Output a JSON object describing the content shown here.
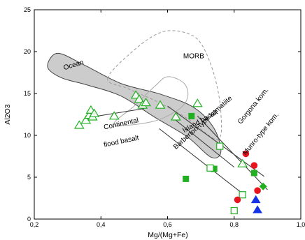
{
  "chart_data": {
    "type": "scatter",
    "xlabel": "Mg/(Mg+Fe)",
    "ylabel": "Al2O3",
    "xlim": [
      0.2,
      1.0
    ],
    "ylim": [
      0,
      25
    ],
    "xticks": [
      "0,2",
      "0,4",
      "0,6",
      "0,8",
      "1,0"
    ],
    "xtick_values": [
      0.2,
      0.4,
      0.6,
      0.8,
      1.0
    ],
    "yticks": [
      "0",
      "5",
      "10",
      "15",
      "20",
      "25"
    ],
    "ytick_values": [
      0,
      5,
      10,
      15,
      20,
      25
    ],
    "grid": false,
    "colors": {
      "green": "#22b022",
      "red": "#e8141e",
      "blue": "#1432e6",
      "ocean_fill": "#cccccc"
    },
    "series": [
      {
        "marker": "open-triangle",
        "color": "#22b022",
        "points": [
          [
            0.335,
            11.2
          ],
          [
            0.355,
            11.8
          ],
          [
            0.365,
            12.4
          ],
          [
            0.37,
            13.0
          ],
          [
            0.375,
            12.2
          ],
          [
            0.38,
            12.6
          ],
          [
            0.44,
            12.3
          ],
          [
            0.505,
            14.8
          ],
          [
            0.515,
            14.3
          ],
          [
            0.525,
            13.6
          ],
          [
            0.535,
            13.9
          ],
          [
            0.578,
            13.6
          ],
          [
            0.625,
            12.2
          ],
          [
            0.69,
            13.8
          ],
          [
            0.825,
            6.6
          ]
        ]
      },
      {
        "marker": "filled-square",
        "color": "#22b022",
        "points": [
          [
            0.655,
            4.8
          ],
          [
            0.672,
            12.3
          ],
          [
            0.74,
            6.0
          ],
          [
            0.86,
            5.5
          ]
        ]
      },
      {
        "marker": "open-square",
        "color": "#22b022",
        "points": [
          [
            0.728,
            6.1
          ],
          [
            0.757,
            8.7
          ],
          [
            0.825,
            2.9
          ],
          [
            0.8,
            1.0
          ]
        ]
      },
      {
        "marker": "filled-circle",
        "color": "#e8141e",
        "points": [
          [
            0.835,
            7.8
          ],
          [
            0.86,
            6.4
          ],
          [
            0.87,
            3.4
          ],
          [
            0.81,
            2.3
          ]
        ]
      },
      {
        "marker": "filled-triangle",
        "color": "#1432e6",
        "points": [
          [
            0.865,
            2.3
          ],
          [
            0.87,
            1.1
          ]
        ]
      },
      {
        "marker": "filled-diamond",
        "color": "#22b022",
        "points": [
          [
            0.887,
            3.9
          ]
        ]
      }
    ],
    "regions": [
      {
        "name": "Ocean",
        "style": "grey filled",
        "outline": [
          [
            0.24,
            18.2
          ],
          [
            0.27,
            19.8
          ],
          [
            0.35,
            18.4
          ],
          [
            0.46,
            16.2
          ],
          [
            0.58,
            14.9
          ],
          [
            0.68,
            13.3
          ],
          [
            0.74,
            10.8
          ],
          [
            0.76,
            8.0
          ],
          [
            0.73,
            7.4
          ],
          [
            0.66,
            9.8
          ],
          [
            0.56,
            12.2
          ],
          [
            0.46,
            14.7
          ],
          [
            0.36,
            16.0
          ],
          [
            0.28,
            16.9
          ]
        ]
      },
      {
        "name": "MORB",
        "style": "dashed",
        "outline": [
          [
            0.42,
            16.8
          ],
          [
            0.5,
            20.2
          ],
          [
            0.58,
            22.3
          ],
          [
            0.65,
            22.3
          ],
          [
            0.7,
            21.0
          ],
          [
            0.74,
            17.2
          ],
          [
            0.76,
            12.8
          ],
          [
            0.75,
            9.5
          ],
          [
            0.66,
            12.0
          ],
          [
            0.57,
            14.0
          ],
          [
            0.48,
            15.6
          ]
        ]
      },
      {
        "name": "Continental flood basalt",
        "style": "thin outline",
        "outline": [
          [
            0.44,
            11.3
          ],
          [
            0.5,
            13.5
          ],
          [
            0.56,
            15.8
          ],
          [
            0.6,
            17.0
          ],
          [
            0.65,
            16.2
          ],
          [
            0.66,
            14.5
          ],
          [
            0.63,
            13.0
          ],
          [
            0.55,
            11.6
          ]
        ]
      }
    ],
    "trend_lines": [
      {
        "name": "Gorgona kom.",
        "from": [
          0.6,
          13.5
        ],
        "to": [
          0.89,
          5.1
        ]
      },
      {
        "name": "Munro-type kom.",
        "from": [
          0.69,
          12.3
        ],
        "to": [
          0.9,
          3.5
        ]
      },
      {
        "name": "Island basalt",
        "from": [
          0.625,
          11.8
        ],
        "to": [
          0.8,
          6.2
        ]
      },
      {
        "name": "Barberton-type komatiite",
        "from": [
          0.575,
          10.8
        ],
        "to": [
          0.83,
          2.9
        ]
      },
      {
        "name": "",
        "from": [
          0.39,
          12.3
        ],
        "to": [
          0.53,
          13.2
        ]
      }
    ],
    "annotations": [
      {
        "text": "MORB",
        "x": 0.647,
        "y": 19.2,
        "rotate": 0
      },
      {
        "text": "Ocean",
        "x": 0.29,
        "y": 17.8,
        "rotate": -17
      },
      {
        "text": "Continental",
        "x": 0.41,
        "y": 10.7,
        "rotate": -12
      },
      {
        "text": "flood basalt",
        "x": 0.41,
        "y": 8.6,
        "rotate": -12
      },
      {
        "text": "Island basalt",
        "x": 0.65,
        "y": 10.3,
        "rotate": -30
      },
      {
        "text": "Barberton-type komatiite",
        "x": 0.625,
        "y": 8.3,
        "rotate": -42
      },
      {
        "text": "Gorgona kom.",
        "x": 0.82,
        "y": 11.3,
        "rotate": -51
      },
      {
        "text": "Munro-type kom.",
        "x": 0.835,
        "y": 7.6,
        "rotate": -51
      }
    ]
  }
}
